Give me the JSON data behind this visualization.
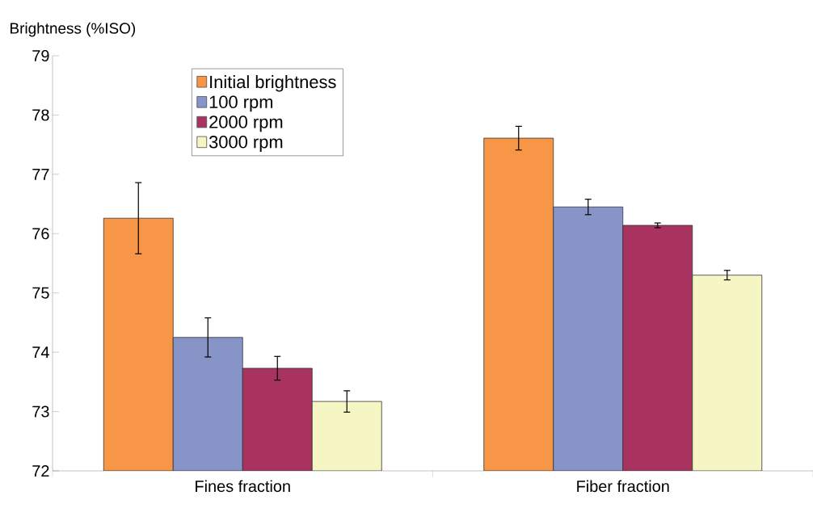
{
  "chart_data": {
    "type": "bar",
    "ylabel": "Brightness (%ISO)",
    "categories": [
      "Fines fraction",
      "Fiber fraction"
    ],
    "series": [
      {
        "name": "Initial brightness",
        "color": "#f79646",
        "values": [
          76.26,
          77.61
        ],
        "errors": [
          0.6,
          0.2
        ]
      },
      {
        "name": "100 rpm",
        "color": "#8794c8",
        "values": [
          74.25,
          76.45
        ],
        "errors": [
          0.33,
          0.13
        ]
      },
      {
        "name": "2000 rpm",
        "color": "#a9335f",
        "values": [
          73.73,
          76.14
        ],
        "errors": [
          0.2,
          0.04
        ]
      },
      {
        "name": "3000 rpm",
        "color": "#f6f5c4",
        "values": [
          73.17,
          75.3
        ],
        "errors": [
          0.18,
          0.08
        ]
      }
    ],
    "ylim": [
      72,
      79
    ],
    "yticks": [
      72,
      73,
      74,
      75,
      76,
      77,
      78,
      79
    ],
    "grid": false,
    "legend": "top left"
  }
}
